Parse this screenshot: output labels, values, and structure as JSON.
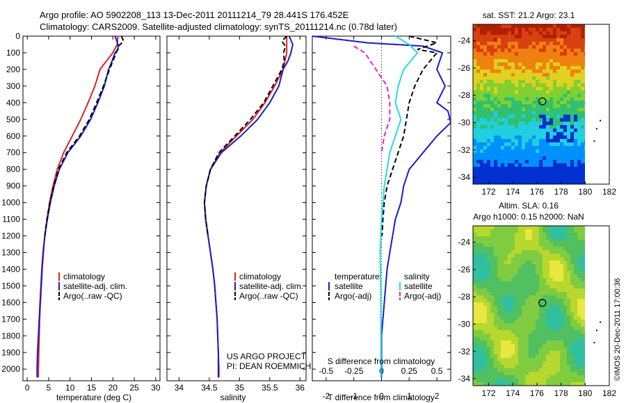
{
  "title": {
    "line1": "Argo profile: AO 5902208_113 13-Dec-2011 20111214_79 28.441S 176.452E",
    "line2": "Climatology: CARS2009. Satellite-adjusted climatology: synTS_20111214.nc (0.78d later)"
  },
  "credits": {
    "project": "US ARGO PROJECT",
    "pi": "PI: DEAN ROEMMICH",
    "imos": "©IMOS 20-Dec-2011 17:00:36"
  },
  "colors": {
    "climatology": "#dd2222",
    "satellite": "#1a1acc",
    "argo": "#000000",
    "satellite_salinity": "#22dddd",
    "argo_salinity_diff": "#dd22dd"
  },
  "chart_data": [
    {
      "type": "line",
      "id": "temperature",
      "xlabel": "temperature (deg C)",
      "ylabel": "",
      "xlim": [
        -1,
        31
      ],
      "ylim": [
        2070,
        0
      ],
      "xticks": [
        0,
        5,
        10,
        15,
        20,
        25,
        30
      ],
      "yticks": [
        0,
        100,
        200,
        300,
        400,
        500,
        600,
        700,
        800,
        900,
        1000,
        1100,
        1200,
        1300,
        1400,
        1500,
        1600,
        1700,
        1800,
        1900,
        2000
      ],
      "legend": {
        "position": "lower-middle",
        "entries": [
          "climatology",
          "satellite-adj. clim.",
          "Argo(..raw -QC)"
        ]
      },
      "series": [
        {
          "name": "climatology",
          "style": "solid",
          "color": "#dd2222",
          "points": [
            [
              21.2,
              0
            ],
            [
              21.0,
              50
            ],
            [
              20.0,
              100
            ],
            [
              18.5,
              150
            ],
            [
              17.0,
              200
            ],
            [
              15.8,
              300
            ],
            [
              14.2,
              400
            ],
            [
              12.5,
              500
            ],
            [
              10.5,
              600
            ],
            [
              8.5,
              700
            ],
            [
              7.0,
              800
            ],
            [
              6.0,
              900
            ],
            [
              5.2,
              1000
            ],
            [
              4.6,
              1100
            ],
            [
              4.1,
              1200
            ],
            [
              3.8,
              1300
            ],
            [
              3.5,
              1400
            ],
            [
              3.3,
              1500
            ],
            [
              3.1,
              1600
            ],
            [
              2.9,
              1700
            ],
            [
              2.8,
              1800
            ],
            [
              2.7,
              1900
            ],
            [
              2.6,
              2000
            ],
            [
              2.6,
              2050
            ]
          ]
        },
        {
          "name": "satellite-adj. clim.",
          "style": "solid",
          "color": "#1a1acc",
          "points": [
            [
              20.5,
              0
            ],
            [
              21.2,
              50
            ],
            [
              21.2,
              80
            ],
            [
              20.5,
              100
            ],
            [
              19.8,
              150
            ],
            [
              19.0,
              200
            ],
            [
              18.0,
              300
            ],
            [
              16.5,
              400
            ],
            [
              14.8,
              500
            ],
            [
              12.5,
              600
            ],
            [
              9.5,
              700
            ],
            [
              7.5,
              800
            ],
            [
              6.3,
              900
            ],
            [
              5.4,
              1000
            ],
            [
              4.7,
              1100
            ],
            [
              4.1,
              1200
            ],
            [
              3.7,
              1300
            ],
            [
              3.4,
              1400
            ],
            [
              3.2,
              1500
            ],
            [
              3.0,
              1600
            ],
            [
              2.8,
              1700
            ],
            [
              2.6,
              1800
            ],
            [
              2.4,
              1900
            ],
            [
              2.3,
              2000
            ],
            [
              2.3,
              2050
            ]
          ]
        },
        {
          "name": "Argo(..raw -QC)",
          "style": "dashed",
          "color": "#000000",
          "points": [
            [
              22.0,
              0
            ],
            [
              22.5,
              30
            ],
            [
              21.3,
              60
            ],
            [
              20.8,
              100
            ],
            [
              20.0,
              150
            ],
            [
              19.2,
              200
            ],
            [
              17.8,
              300
            ],
            [
              16.2,
              400
            ],
            [
              14.5,
              500
            ],
            [
              12.2,
              600
            ],
            [
              9.2,
              700
            ],
            [
              7.3,
              800
            ],
            [
              6.2,
              900
            ],
            [
              5.3,
              1000
            ],
            [
              4.6,
              1100
            ],
            [
              4.1,
              1200
            ]
          ]
        }
      ]
    },
    {
      "type": "line",
      "id": "salinity",
      "xlabel": "salinity",
      "ylabel": "",
      "xlim": [
        33.8,
        36.1
      ],
      "ylim": [
        2070,
        0
      ],
      "xticks": [
        34,
        34.5,
        35,
        35.5,
        36
      ],
      "legend": {
        "position": "lower-middle",
        "entries": [
          "climatology",
          "satellite-adj. clim.",
          "Argo(..raw -QC)"
        ]
      },
      "series": [
        {
          "name": "climatology",
          "style": "solid",
          "color": "#dd2222",
          "points": [
            [
              35.78,
              0
            ],
            [
              35.78,
              100
            ],
            [
              35.72,
              200
            ],
            [
              35.58,
              300
            ],
            [
              35.42,
              400
            ],
            [
              35.22,
              500
            ],
            [
              34.95,
              600
            ],
            [
              34.68,
              700
            ],
            [
              34.52,
              800
            ],
            [
              34.45,
              900
            ],
            [
              34.42,
              1000
            ],
            [
              34.44,
              1100
            ],
            [
              34.48,
              1200
            ],
            [
              34.52,
              1300
            ],
            [
              34.56,
              1400
            ],
            [
              34.59,
              1500
            ],
            [
              34.61,
              1600
            ],
            [
              34.63,
              1700
            ],
            [
              34.64,
              1800
            ],
            [
              34.65,
              1900
            ],
            [
              34.66,
              2000
            ],
            [
              34.66,
              2050
            ]
          ]
        },
        {
          "name": "satellite-adj. clim.",
          "style": "solid",
          "color": "#1a1acc",
          "points": [
            [
              35.82,
              0
            ],
            [
              35.88,
              50
            ],
            [
              35.85,
              100
            ],
            [
              35.8,
              150
            ],
            [
              35.72,
              200
            ],
            [
              35.65,
              300
            ],
            [
              35.5,
              400
            ],
            [
              35.3,
              500
            ],
            [
              35.02,
              600
            ],
            [
              34.7,
              700
            ],
            [
              34.52,
              800
            ],
            [
              34.45,
              900
            ],
            [
              34.42,
              1000
            ],
            [
              34.44,
              1100
            ],
            [
              34.48,
              1200
            ],
            [
              34.52,
              1300
            ],
            [
              34.56,
              1400
            ],
            [
              34.59,
              1500
            ],
            [
              34.61,
              1600
            ],
            [
              34.63,
              1700
            ],
            [
              34.64,
              1800
            ],
            [
              34.65,
              1900
            ],
            [
              34.65,
              2000
            ],
            [
              34.65,
              2050
            ]
          ]
        },
        {
          "name": "Argo(..raw -QC)",
          "style": "dashed",
          "color": "#000000",
          "points": [
            [
              35.78,
              0
            ],
            [
              35.7,
              30
            ],
            [
              35.76,
              60
            ],
            [
              35.73,
              100
            ],
            [
              35.74,
              150
            ],
            [
              35.7,
              200
            ],
            [
              35.55,
              300
            ],
            [
              35.4,
              400
            ],
            [
              35.18,
              500
            ],
            [
              34.92,
              600
            ],
            [
              34.66,
              700
            ],
            [
              34.52,
              800
            ],
            [
              34.45,
              900
            ],
            [
              34.42,
              1000
            ],
            [
              34.44,
              1100
            ],
            [
              34.48,
              1200
            ]
          ]
        }
      ]
    },
    {
      "type": "line",
      "id": "difference",
      "xlabel": "T difference from climatology",
      "xlabel_top": "S difference from climatology",
      "xlim": [
        -2.5,
        2.5
      ],
      "ylim": [
        2070,
        0
      ],
      "xticks": [
        -2,
        -1,
        0,
        1,
        2
      ],
      "xticks_s": [
        [
          "-0.5",
          -2
        ],
        [
          "-0.25",
          -1
        ],
        [
          "0",
          0
        ],
        [
          "0.25",
          1
        ],
        [
          "0.5",
          2
        ]
      ],
      "legend": {
        "position": "lower-middle",
        "entries": [
          "temperature",
          "satellite",
          "Argo(-adj)",
          "salinity",
          "satellite",
          "Argo(-adj)"
        ]
      },
      "series": [
        {
          "name": "satellite",
          "group": "temperature",
          "style": "solid",
          "color": "#1a1acc",
          "points": [
            [
              -3.0,
              0
            ],
            [
              -0.5,
              40
            ],
            [
              1.5,
              60
            ],
            [
              2.2,
              100
            ],
            [
              2.0,
              200
            ],
            [
              2.3,
              300
            ],
            [
              2.0,
              400
            ],
            [
              2.4,
              450
            ],
            [
              2.6,
              520
            ],
            [
              2.0,
              600
            ],
            [
              1.5,
              700
            ],
            [
              1.0,
              800
            ],
            [
              0.8,
              900
            ],
            [
              0.7,
              1000
            ],
            [
              0.5,
              1100
            ],
            [
              0.4,
              1200
            ],
            [
              0.3,
              1300
            ],
            [
              0.2,
              1400
            ],
            [
              0.15,
              1500
            ],
            [
              0.1,
              1600
            ],
            [
              0.05,
              1700
            ],
            [
              0.0,
              1800
            ],
            [
              0.0,
              2000
            ],
            [
              0.0,
              2050
            ]
          ]
        },
        {
          "name": "Argo(-adj)",
          "group": "temperature",
          "style": "dashed",
          "color": "#000000",
          "points": [
            [
              1.0,
              0
            ],
            [
              2.0,
              40
            ],
            [
              1.3,
              80
            ],
            [
              2.0,
              100
            ],
            [
              1.5,
              200
            ],
            [
              1.2,
              300
            ],
            [
              1.0,
              400
            ],
            [
              0.9,
              500
            ],
            [
              0.8,
              600
            ],
            [
              0.6,
              700
            ],
            [
              0.4,
              800
            ],
            [
              0.2,
              900
            ],
            [
              0.1,
              1000
            ],
            [
              0.05,
              1100
            ],
            [
              0.02,
              1200
            ]
          ]
        },
        {
          "name": "satellite",
          "group": "salinity",
          "style": "solid",
          "color": "#22dddd",
          "points": [
            [
              0.5,
              0
            ],
            [
              1.0,
              50
            ],
            [
              1.3,
              100
            ],
            [
              0.8,
              200
            ],
            [
              0.6,
              300
            ],
            [
              0.5,
              400
            ],
            [
              0.7,
              500
            ],
            [
              0.3,
              700
            ],
            [
              0.1,
              900
            ],
            [
              0.0,
              1100
            ],
            [
              -0.05,
              1300
            ],
            [
              -0.03,
              1500
            ],
            [
              -0.02,
              1700
            ],
            [
              -0.02,
              1900
            ],
            [
              -0.02,
              2050
            ]
          ]
        },
        {
          "name": "Argo(-adj)",
          "group": "salinity",
          "style": "dashed",
          "color": "#dd22dd",
          "points": [
            [
              -1.0,
              60
            ],
            [
              -0.6,
              100
            ],
            [
              -0.2,
              200
            ],
            [
              0.2,
              300
            ],
            [
              0.3,
              400
            ],
            [
              0.3,
              500
            ],
            [
              0.1,
              600
            ],
            [
              0.0,
              700
            ]
          ]
        }
      ]
    },
    {
      "type": "heatmap",
      "id": "sst-map",
      "title": "sat. SST: 21.2  Argo: 23.1",
      "xlim": [
        170.7,
        182
      ],
      "ylim": [
        -34.5,
        -22.8
      ],
      "xticks": [
        172,
        174,
        176,
        178,
        180,
        182
      ],
      "yticks": [
        -24,
        -26,
        -28,
        -30,
        -32,
        -34
      ],
      "marker": {
        "lon": 176.452,
        "lat": -28.441
      }
    },
    {
      "type": "heatmap",
      "id": "sla-map",
      "title_line1": "Altim. SLA: 0.16",
      "title_line2": "Argo h1000: 0.15 h2000: NaN",
      "xlim": [
        170.7,
        182
      ],
      "ylim": [
        -34.5,
        -22.8
      ],
      "xticks": [
        172,
        174,
        176,
        178,
        180,
        182
      ],
      "yticks": [
        -24,
        -26,
        -28,
        -30,
        -32,
        -34
      ],
      "marker": {
        "lon": 176.452,
        "lat": -28.441
      }
    }
  ]
}
